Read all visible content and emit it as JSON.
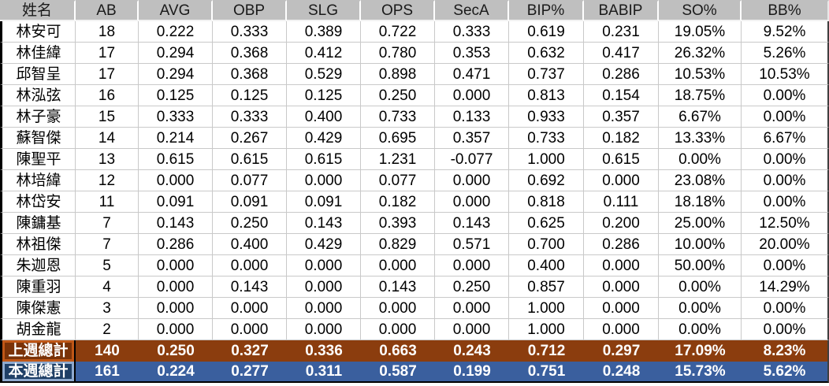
{
  "table": {
    "columns": [
      "姓名",
      "AB",
      "AVG",
      "OBP",
      "SLG",
      "OPS",
      "SecA",
      "BIP%",
      "BABIP",
      "SO%",
      "BB%"
    ],
    "players": [
      {
        "name": "林安可",
        "values": [
          "18",
          "0.222",
          "0.333",
          "0.389",
          "0.722",
          "0.333",
          "0.619",
          "0.231",
          "19.05%",
          "9.52%"
        ]
      },
      {
        "name": "林佳緯",
        "values": [
          "17",
          "0.294",
          "0.368",
          "0.412",
          "0.780",
          "0.353",
          "0.632",
          "0.417",
          "26.32%",
          "5.26%"
        ]
      },
      {
        "name": "邱智呈",
        "values": [
          "17",
          "0.294",
          "0.368",
          "0.529",
          "0.898",
          "0.471",
          "0.737",
          "0.286",
          "10.53%",
          "10.53%"
        ]
      },
      {
        "name": "林泓弦",
        "values": [
          "16",
          "0.125",
          "0.125",
          "0.125",
          "0.250",
          "0.000",
          "0.813",
          "0.154",
          "18.75%",
          "0.00%"
        ]
      },
      {
        "name": "林子豪",
        "values": [
          "15",
          "0.333",
          "0.333",
          "0.400",
          "0.733",
          "0.133",
          "0.933",
          "0.357",
          "6.67%",
          "0.00%"
        ]
      },
      {
        "name": "蘇智傑",
        "values": [
          "14",
          "0.214",
          "0.267",
          "0.429",
          "0.695",
          "0.357",
          "0.733",
          "0.182",
          "13.33%",
          "6.67%"
        ]
      },
      {
        "name": "陳聖平",
        "values": [
          "13",
          "0.615",
          "0.615",
          "0.615",
          "1.231",
          "-0.077",
          "1.000",
          "0.615",
          "0.00%",
          "0.00%"
        ]
      },
      {
        "name": "林培緯",
        "values": [
          "12",
          "0.000",
          "0.077",
          "0.000",
          "0.077",
          "0.000",
          "0.692",
          "0.000",
          "23.08%",
          "0.00%"
        ]
      },
      {
        "name": "林岱安",
        "values": [
          "11",
          "0.091",
          "0.091",
          "0.091",
          "0.182",
          "0.000",
          "0.818",
          "0.111",
          "18.18%",
          "0.00%"
        ]
      },
      {
        "name": "陳鏞基",
        "values": [
          "7",
          "0.143",
          "0.250",
          "0.143",
          "0.393",
          "0.143",
          "0.625",
          "0.200",
          "25.00%",
          "12.50%"
        ]
      },
      {
        "name": "林祖傑",
        "values": [
          "7",
          "0.286",
          "0.400",
          "0.429",
          "0.829",
          "0.571",
          "0.700",
          "0.286",
          "10.00%",
          "20.00%"
        ]
      },
      {
        "name": "朱迦恩",
        "values": [
          "5",
          "0.000",
          "0.000",
          "0.000",
          "0.000",
          "0.000",
          "0.400",
          "0.000",
          "50.00%",
          "0.00%"
        ]
      },
      {
        "name": "陳重羽",
        "values": [
          "4",
          "0.000",
          "0.143",
          "0.000",
          "0.143",
          "0.250",
          "0.857",
          "0.000",
          "0.00%",
          "14.29%"
        ]
      },
      {
        "name": "陳傑憲",
        "values": [
          "3",
          "0.000",
          "0.000",
          "0.000",
          "0.000",
          "0.000",
          "1.000",
          "0.000",
          "0.00%",
          "0.00%"
        ]
      },
      {
        "name": "胡金龍",
        "values": [
          "2",
          "0.000",
          "0.000",
          "0.000",
          "0.000",
          "0.000",
          "1.000",
          "0.000",
          "0.00%",
          "0.00%"
        ]
      }
    ],
    "totals": [
      {
        "label": "上週總計",
        "values": [
          "140",
          "0.250",
          "0.327",
          "0.336",
          "0.663",
          "0.243",
          "0.712",
          "0.297",
          "17.09%",
          "8.23%"
        ],
        "row_color": "#8B3D0E",
        "label_fill": "#7A3208",
        "label_border": "#C05717"
      },
      {
        "label": "本週總計",
        "values": [
          "161",
          "0.224",
          "0.277",
          "0.311",
          "0.587",
          "0.199",
          "0.751",
          "0.248",
          "15.73%",
          "5.62%"
        ],
        "row_color": "#3A5F9E",
        "label_fill": "#1F3F66",
        "label_border": "#8EA9CE"
      }
    ],
    "colors": {
      "header_bg": "#BFBFBF",
      "grid_line": "#C9C9C9",
      "body_bg": "#FFFFFF",
      "body_text": "#000000",
      "total_text": "#FFFFFF",
      "outer_border": "#000000"
    }
  }
}
